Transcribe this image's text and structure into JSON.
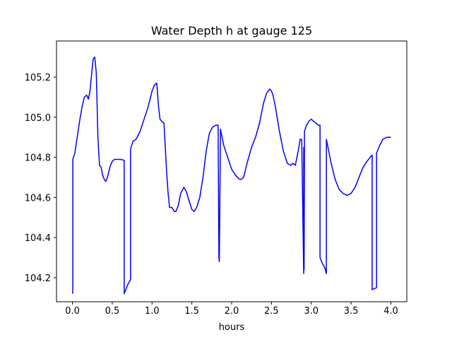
{
  "chart_data": {
    "type": "line",
    "title": "Water Depth h at gauge 125",
    "xlabel": "hours",
    "ylabel": "",
    "xlim": [
      -0.2,
      4.2
    ],
    "ylim": [
      104.08,
      105.38
    ],
    "xticks": [
      0.0,
      0.5,
      1.0,
      1.5,
      2.0,
      2.5,
      3.0,
      3.5,
      4.0
    ],
    "xtick_labels": [
      "0.0",
      "0.5",
      "1.0",
      "1.5",
      "2.0",
      "2.5",
      "3.0",
      "3.5",
      "4.0"
    ],
    "yticks": [
      104.2,
      104.4,
      104.6,
      104.8,
      105.0,
      105.2
    ],
    "ytick_labels": [
      "104.2",
      "104.4",
      "104.6",
      "104.8",
      "105.0",
      "105.2"
    ],
    "grid": false,
    "series": [
      {
        "color": "#0000ff",
        "x": [
          0.0,
          0.005,
          0.005,
          0.03,
          0.06,
          0.09,
          0.12,
          0.15,
          0.18,
          0.2,
          0.22,
          0.24,
          0.26,
          0.28,
          0.3,
          0.32,
          0.34,
          0.36,
          0.38,
          0.4,
          0.42,
          0.44,
          0.47,
          0.5,
          0.53,
          0.56,
          0.6,
          0.65,
          0.65,
          0.7,
          0.73,
          0.73,
          0.76,
          0.8,
          0.85,
          0.9,
          0.95,
          1.0,
          1.03,
          1.06,
          1.08,
          1.1,
          1.12,
          1.15,
          1.18,
          1.2,
          1.22,
          1.25,
          1.28,
          1.3,
          1.33,
          1.36,
          1.4,
          1.43,
          1.46,
          1.5,
          1.53,
          1.56,
          1.6,
          1.64,
          1.68,
          1.72,
          1.76,
          1.8,
          1.83,
          1.84,
          1.845,
          1.86,
          1.86,
          1.87,
          1.9,
          1.95,
          2.0,
          2.05,
          2.1,
          2.12,
          2.15,
          2.2,
          2.25,
          2.3,
          2.35,
          2.4,
          2.44,
          2.48,
          2.5,
          2.52,
          2.55,
          2.6,
          2.65,
          2.7,
          2.74,
          2.77,
          2.8,
          2.82,
          2.84,
          2.86,
          2.88,
          2.905,
          2.905,
          2.91,
          2.915,
          2.915,
          2.94,
          2.97,
          3.0,
          3.03,
          3.06,
          3.09,
          3.11,
          3.11,
          3.14,
          3.17,
          3.19,
          3.19,
          3.22,
          3.25,
          3.3,
          3.35,
          3.4,
          3.45,
          3.5,
          3.55,
          3.6,
          3.65,
          3.7,
          3.74,
          3.76,
          3.765,
          3.765,
          3.82,
          3.82,
          3.86,
          3.9,
          3.95,
          4.0
        ],
        "y": [
          104.12,
          104.13,
          104.79,
          104.82,
          104.9,
          104.98,
          105.05,
          105.1,
          105.11,
          105.09,
          105.13,
          105.21,
          105.29,
          105.3,
          105.22,
          104.9,
          104.76,
          104.75,
          104.71,
          104.69,
          104.68,
          104.7,
          104.75,
          104.78,
          104.79,
          104.79,
          104.79,
          104.785,
          104.12,
          104.17,
          104.19,
          104.84,
          104.88,
          104.89,
          104.93,
          104.99,
          105.05,
          105.13,
          105.16,
          105.17,
          105.06,
          104.99,
          104.98,
          104.97,
          104.75,
          104.63,
          104.55,
          104.55,
          104.53,
          104.53,
          104.56,
          104.62,
          104.65,
          104.63,
          104.59,
          104.54,
          104.53,
          104.55,
          104.6,
          104.7,
          104.83,
          104.92,
          104.95,
          104.96,
          104.96,
          104.3,
          104.28,
          104.94,
          104.94,
          104.92,
          104.86,
          104.8,
          104.74,
          104.71,
          104.69,
          104.69,
          104.7,
          104.78,
          104.85,
          104.9,
          104.97,
          105.07,
          105.12,
          105.14,
          105.13,
          105.11,
          105.05,
          104.93,
          104.83,
          104.77,
          104.76,
          104.77,
          104.76,
          104.8,
          104.84,
          104.89,
          104.89,
          104.22,
          104.85,
          104.24,
          104.93,
          104.93,
          104.96,
          104.98,
          104.99,
          104.98,
          104.97,
          104.96,
          104.96,
          104.3,
          104.27,
          104.25,
          104.22,
          104.89,
          104.83,
          104.77,
          104.69,
          104.64,
          104.62,
          104.61,
          104.62,
          104.65,
          104.7,
          104.75,
          104.78,
          104.8,
          104.81,
          104.81,
          104.14,
          104.15,
          104.82,
          104.86,
          104.89,
          104.9,
          104.9
        ]
      }
    ]
  }
}
